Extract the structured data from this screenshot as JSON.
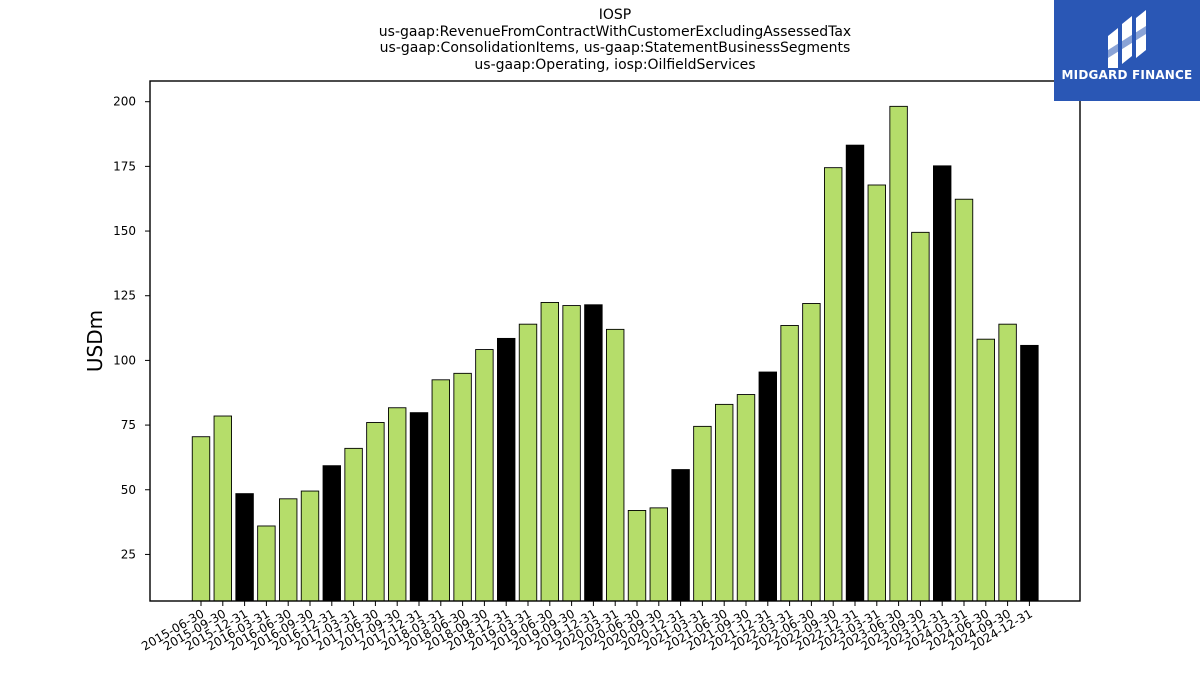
{
  "colors": {
    "bar": "#b5dd6a",
    "bar_highlight": "#000000",
    "bar_edge": "#000000",
    "logo_bg": "#2a57b5",
    "logo_fg": "#ffffff"
  },
  "logo": {
    "text": "MIDGARD FINANCE",
    "icon": "midgard-logo-icon"
  },
  "chart_data": {
    "type": "bar",
    "title": [
      "IOSP",
      "us-gaap:RevenueFromContractWithCustomerExcludingAssessedTax",
      "us-gaap:ConsolidationItems, us-gaap:StatementBusinessSegments",
      "us-gaap:Operating, iosp:OilfieldServices"
    ],
    "xlabel": "",
    "ylabel": "USDm",
    "ylim": [
      7,
      208
    ],
    "yticks": [
      25,
      50,
      75,
      100,
      125,
      150,
      175,
      200
    ],
    "grid": false,
    "categories": [
      "2015-06-30",
      "2015-09-30",
      "2015-12-31",
      "2016-03-31",
      "2016-06-30",
      "2016-09-30",
      "2016-12-31",
      "2017-03-31",
      "2017-06-30",
      "2017-09-30",
      "2017-12-31",
      "2018-03-31",
      "2018-06-30",
      "2018-09-30",
      "2018-12-31",
      "2019-03-31",
      "2019-06-30",
      "2019-09-30",
      "2019-12-31",
      "2020-03-31",
      "2020-06-30",
      "2020-09-30",
      "2020-12-31",
      "2021-03-31",
      "2021-06-30",
      "2021-09-30",
      "2021-12-31",
      "2022-03-31",
      "2022-06-30",
      "2022-09-30",
      "2022-12-31",
      "2023-03-31",
      "2023-06-30",
      "2023-09-30",
      "2023-12-31",
      "2024-03-31",
      "2024-06-30",
      "2024-09-30",
      "2024-12-31"
    ],
    "values": [
      70.5,
      78.5,
      48.5,
      36.0,
      46.5,
      49.5,
      59.3,
      66.0,
      76.0,
      81.7,
      79.8,
      92.5,
      95.0,
      104.2,
      108.5,
      114.0,
      122.4,
      121.2,
      121.5,
      112.0,
      42.0,
      43.0,
      57.8,
      74.5,
      83.0,
      86.8,
      95.5,
      113.5,
      122.0,
      174.5,
      183.2,
      167.8,
      198.2,
      149.5,
      175.2,
      162.3,
      108.2,
      114.0,
      105.8
    ],
    "highlight": [
      false,
      false,
      true,
      false,
      false,
      false,
      true,
      false,
      false,
      false,
      true,
      false,
      false,
      false,
      true,
      false,
      false,
      false,
      true,
      false,
      false,
      false,
      true,
      false,
      false,
      false,
      true,
      false,
      false,
      false,
      true,
      false,
      false,
      false,
      true,
      false,
      false,
      false,
      true
    ]
  }
}
